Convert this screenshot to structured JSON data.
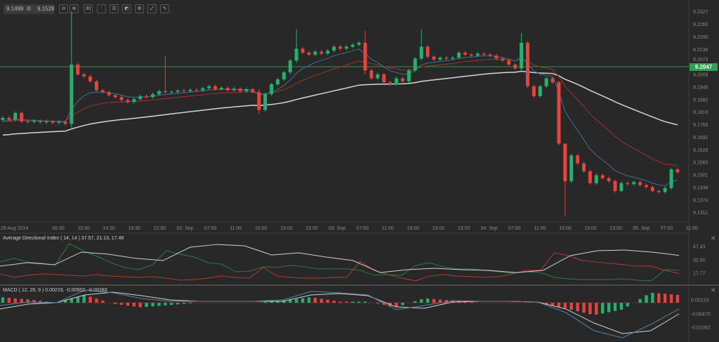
{
  "toolbar": {
    "bid": "9.1499",
    "ask": "9.1528",
    "buttons": [
      {
        "name": "zoom-out-icon",
        "glyph": "⊖"
      },
      {
        "name": "zoom-in-icon",
        "glyph": "⊕"
      },
      {
        "name": "timeframe-icon",
        "glyph": "30"
      },
      {
        "name": "chart-type-icon",
        "glyph": "⫶"
      },
      {
        "name": "indicators-icon",
        "glyph": "☰"
      },
      {
        "name": "drawing-icon",
        "glyph": "◩"
      },
      {
        "name": "templates-icon",
        "glyph": "⧉"
      },
      {
        "name": "screenshot-icon",
        "glyph": "⤢"
      },
      {
        "name": "eraser-icon",
        "glyph": "✎"
      }
    ]
  },
  "current_price": "9.2047",
  "colors": {
    "up": "#23b26d",
    "down": "#e5443e",
    "ma_fast": "#3f6e96",
    "ma_mid": "#9c3430",
    "ma_slow": "#d6d6d6",
    "crosshair": "#3f8a4c",
    "price_tag": "#2e9e52"
  },
  "chart_data": [
    {
      "type": "candlestick",
      "price_axis": [
        "9.2327",
        "9.2263",
        "9.2200",
        "9.2136",
        "9.2073",
        "9.2009",
        "9.1946",
        "9.1882",
        "9.1819",
        "9.1755",
        "9.1692",
        "9.1628",
        "9.1565",
        "9.1501",
        "9.1438",
        "9.1374",
        "9.1311"
      ],
      "ylim": [
        9.1311,
        9.2327
      ],
      "time_axis": [
        "29 Aug 2014",
        "06:30",
        "10:30",
        "14:30",
        "18:30",
        "22:30",
        "02. Sep",
        "07:00",
        "11:00",
        "15:00",
        "19:00",
        "23:00",
        "03. Sep",
        "07:00",
        "11:00",
        "15:00",
        "19:00",
        "23:00",
        "04. Sep",
        "07:00",
        "11:00",
        "15:00",
        "19:00",
        "23:00",
        "05. Sep",
        "07:00",
        "11:00"
      ],
      "close": [
        9.179,
        9.178,
        9.1815,
        9.1772,
        9.177,
        9.1775,
        9.1768,
        9.1772,
        9.1765,
        9.177,
        9.176,
        9.206,
        9.201,
        9.2,
        9.1975,
        9.193,
        9.192,
        9.1905,
        9.1895,
        9.188,
        9.187,
        9.1885,
        9.19,
        9.1895,
        9.191,
        9.1925,
        9.192,
        9.1922,
        9.1928,
        9.1925,
        9.1932,
        9.193,
        9.194,
        9.195,
        9.1935,
        9.1942,
        9.193,
        9.1938,
        9.1925,
        9.1935,
        9.192,
        9.183,
        9.191,
        9.196,
        9.1985,
        9.202,
        9.208,
        9.214,
        9.212,
        9.211,
        9.2125,
        9.2115,
        9.213,
        9.215,
        9.214,
        9.215,
        9.216,
        9.217,
        9.203,
        9.199,
        9.201,
        9.197,
        9.196,
        9.199,
        9.1975,
        9.203,
        9.209,
        9.215,
        9.21,
        9.2085,
        9.2095,
        9.209,
        9.2095,
        9.212,
        9.211,
        9.2105,
        9.2115,
        9.211,
        9.2105,
        9.209,
        9.208,
        9.206,
        9.204,
        9.217,
        9.195,
        9.19,
        9.195,
        9.199,
        9.197,
        9.166,
        9.147,
        9.16,
        9.156,
        9.152,
        9.146,
        9.15,
        9.1485,
        9.147,
        9.142,
        9.146,
        9.1455,
        9.1465,
        9.145,
        9.144,
        9.142,
        9.1415,
        9.1435,
        9.153,
        9.1515
      ],
      "first_open": 9.178,
      "wick_extremes": {
        "11": [
          9.233,
          9.174
        ],
        "26": [
          9.2105,
          9.1915
        ],
        "41": [
          9.1935,
          9.181
        ],
        "47": [
          9.224,
          9.207
        ],
        "58": [
          9.223,
          9.201
        ],
        "67": [
          9.224,
          9.208
        ],
        "83": [
          9.222,
          9.203
        ],
        "90": [
          9.166,
          9.129
        ]
      }
    },
    {
      "type": "line",
      "title": "Average Directional Index ( 14, 14 ) 37.57, 21.13, 17.48",
      "axis": [
        "47.43",
        "32.60",
        "17.77"
      ],
      "ylim": [
        17.77,
        47.43
      ],
      "adx": [
        25.6,
        29.5,
        27.1,
        41.2,
        38.8,
        34.2,
        31.8,
        46.6,
        49.7,
        48.2,
        38.0,
        40.4,
        35.7,
        31.8,
        18.5,
        21.7,
        23.2,
        21.7,
        20.9,
        18.5,
        20.9,
        37.3,
        42.7,
        43.5,
        41.2,
        37.6
      ],
      "plus_di": [
        30.2,
        34.2,
        30.2,
        28.7,
        27.1,
        50.5,
        42.7,
        36.5,
        29.5,
        24.0,
        21.7,
        27.1,
        42.7,
        38.8,
        35.7,
        29.5,
        27.9,
        19.3,
        20.1,
        24.8,
        24.0,
        26.4,
        24.8,
        22.5,
        22.5,
        22.5,
        20.9,
        15.4,
        16.2,
        15.4,
        26.4,
        29.5,
        24.8,
        22.5,
        22.5,
        20.9,
        19.3,
        17.8,
        19.3,
        18.5,
        13.1,
        11.5,
        10.7,
        10.7,
        10.7,
        11.5,
        10.0,
        9.2,
        21.7,
        21.1
      ],
      "minus_di": [
        17.0,
        13.1,
        15.4,
        17.0,
        16.2,
        15.4,
        14.6,
        16.2,
        14.6,
        13.9,
        13.1,
        13.9,
        12.3,
        10.0,
        10.7,
        12.3,
        14.6,
        13.1,
        12.3,
        24.0,
        14.6,
        13.1,
        12.3,
        12.3,
        13.1,
        13.1,
        31.0,
        20.9,
        16.2,
        12.3,
        9.2,
        14.6,
        16.2,
        14.6,
        13.9,
        13.1,
        13.9,
        17.0,
        20.9,
        20.9,
        40.4,
        37.3,
        31.8,
        30.2,
        28.7,
        27.1,
        25.6,
        25.6,
        20.9,
        17.5
      ]
    },
    {
      "type": "bar+line",
      "title": "MACD ( 12, 26, 9 ) 0.00219, -0.00502, -0.00283",
      "axis": [
        "0.00123",
        "-0.00470",
        "-0.01062"
      ],
      "ylim": [
        -0.01062,
        0.00123
      ],
      "macd": [
        -0.00114,
        0.00034,
        4e-05,
        0.00538,
        0.0042,
        0.00182,
        0.00064,
        0.00064,
        0.00064,
        0.00064,
        0.00123,
        0.00479,
        0.0042,
        0.00331,
        -0.00292,
        -0.00114,
        0.00093,
        0.00064,
        0.00064,
        0.00034,
        -0.00411,
        -0.01181,
        -0.01478,
        -0.00915,
        -0.00262
      ],
      "signal": [
        -0.00262,
        -0.00055,
        4e-05,
        0.00331,
        0.00449,
        0.00301,
        0.00123,
        0.00064,
        0.00064,
        0.00064,
        0.00064,
        0.00331,
        0.0039,
        0.00301,
        -0.00174,
        -0.00233,
        0.00034,
        0.00064,
        0.00064,
        0.00034,
        -0.00262,
        -0.00856,
        -0.013,
        -0.01181,
        -0.0047
      ]
    }
  ]
}
